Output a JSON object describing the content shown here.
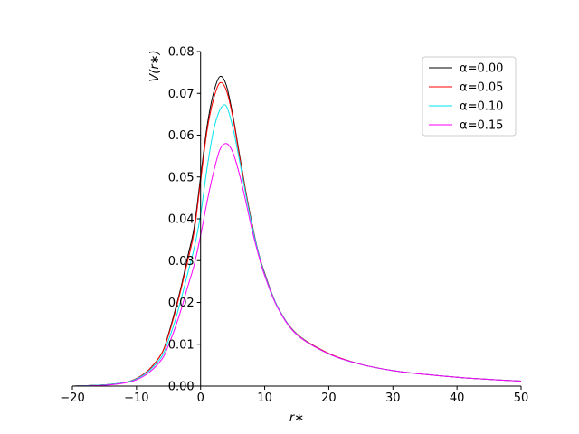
{
  "chart_data": {
    "type": "line",
    "title": "",
    "xlabel": "r∗",
    "ylabel": "V(r∗)",
    "xlim": [
      -20,
      50
    ],
    "ylim": [
      0,
      0.08
    ],
    "xticks": [
      "−20",
      "−10",
      "0",
      "10",
      "20",
      "30",
      "40",
      "50"
    ],
    "yticks": [
      "0.00",
      "0.01",
      "0.02",
      "0.03",
      "0.04",
      "0.05",
      "0.06",
      "0.07",
      "0.08"
    ],
    "xtick_values": [
      -20,
      -10,
      0,
      10,
      20,
      30,
      40,
      50
    ],
    "ytick_values": [
      0,
      0.01,
      0.02,
      0.03,
      0.04,
      0.05,
      0.06,
      0.07,
      0.08
    ],
    "grid": false,
    "legend_position": "top-right",
    "x": [
      -20,
      -15,
      -12,
      -10,
      -8,
      -6,
      -5,
      -4,
      -3,
      -2,
      -1,
      0,
      1,
      2,
      3,
      4,
      5,
      6,
      7,
      8,
      9,
      10,
      12,
      15,
      20,
      25,
      30,
      35,
      40,
      45,
      50
    ],
    "series": [
      {
        "name": "α=0.00",
        "color": "#000000",
        "values": [
          0.0,
          0.0003,
          0.0008,
          0.0018,
          0.004,
          0.008,
          0.0125,
          0.018,
          0.024,
          0.031,
          0.038,
          0.05,
          0.062,
          0.07,
          0.074,
          0.072,
          0.065,
          0.056,
          0.047,
          0.039,
          0.032,
          0.027,
          0.019,
          0.0125,
          0.0078,
          0.0052,
          0.0037,
          0.0028,
          0.0021,
          0.0016,
          0.0012
        ]
      },
      {
        "name": "α=0.05",
        "color": "#ff0000",
        "values": [
          0.0,
          0.0003,
          0.0008,
          0.0018,
          0.004,
          0.008,
          0.0122,
          0.0175,
          0.0235,
          0.03,
          0.037,
          0.049,
          0.061,
          0.0685,
          0.0725,
          0.0708,
          0.0645,
          0.0555,
          0.0468,
          0.0388,
          0.0321,
          0.0268,
          0.019,
          0.0125,
          0.0078,
          0.0052,
          0.0037,
          0.0028,
          0.0021,
          0.0016,
          0.0012
        ]
      },
      {
        "name": "α=0.10",
        "color": "#00e5ee",
        "values": [
          0.0,
          0.0003,
          0.0008,
          0.0017,
          0.0037,
          0.0072,
          0.011,
          0.0155,
          0.021,
          0.027,
          0.033,
          0.041,
          0.052,
          0.061,
          0.066,
          0.067,
          0.062,
          0.0545,
          0.0462,
          0.0385,
          0.032,
          0.0267,
          0.019,
          0.0124,
          0.0077,
          0.0052,
          0.0037,
          0.0028,
          0.0021,
          0.0016,
          0.0012
        ]
      },
      {
        "name": "α=0.15",
        "color": "#ff00ff",
        "values": [
          0.0,
          0.0002,
          0.0007,
          0.0015,
          0.0033,
          0.0065,
          0.0098,
          0.0138,
          0.0185,
          0.0238,
          0.029,
          0.036,
          0.044,
          0.051,
          0.0565,
          0.058,
          0.056,
          0.051,
          0.0445,
          0.0375,
          0.0315,
          0.0264,
          0.0188,
          0.0123,
          0.0077,
          0.0052,
          0.0037,
          0.0028,
          0.0021,
          0.0016,
          0.0012
        ]
      }
    ]
  }
}
